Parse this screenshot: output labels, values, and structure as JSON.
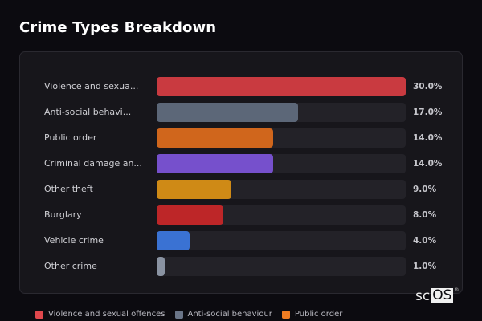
{
  "header": {
    "title": "Crime Types Breakdown"
  },
  "chart_data": {
    "type": "bar",
    "orientation": "horizontal",
    "title": "Crime Types Breakdown",
    "xlabel": "",
    "ylabel": "",
    "xlim": [
      0,
      30
    ],
    "grid": false,
    "legend_position": "bottom",
    "categories": [
      "Violence and sexual offences",
      "Anti-social behaviour",
      "Public order",
      "Criminal damage and arson",
      "Other theft",
      "Burglary",
      "Vehicle crime",
      "Other crime"
    ],
    "values": [
      30.0,
      17.0,
      14.0,
      14.0,
      9.0,
      8.0,
      4.0,
      1.0
    ],
    "unit": "%"
  },
  "rows": [
    {
      "label": "Violence and sexua...",
      "value": 30.0,
      "pct": "30.0%",
      "color": "#c93a40"
    },
    {
      "label": "Anti-social behavi...",
      "value": 17.0,
      "pct": "17.0%",
      "color": "#5c6778"
    },
    {
      "label": "Public order",
      "value": 14.0,
      "pct": "14.0%",
      "color": "#d0661c"
    },
    {
      "label": "Criminal damage an...",
      "value": 14.0,
      "pct": "14.0%",
      "color": "#7650cc"
    },
    {
      "label": "Other theft",
      "value": 9.0,
      "pct": "9.0%",
      "color": "#cf8a16"
    },
    {
      "label": "Burglary",
      "value": 8.0,
      "pct": "8.0%",
      "color": "#bd2628"
    },
    {
      "label": "Vehicle crime",
      "value": 4.0,
      "pct": "4.0%",
      "color": "#3a72d3"
    },
    {
      "label": "Other crime",
      "value": 1.0,
      "pct": "1.0%",
      "color": "#8a93a2"
    }
  ],
  "legend": [
    {
      "label": "Violence and sexual offences",
      "color": "#e0474c"
    },
    {
      "label": "Anti-social behaviour",
      "color": "#6a7588"
    },
    {
      "label": "Public order",
      "color": "#f07d22"
    }
  ],
  "watermark": {
    "part_a": "sc",
    "part_b": "OS",
    "mark": "®"
  }
}
